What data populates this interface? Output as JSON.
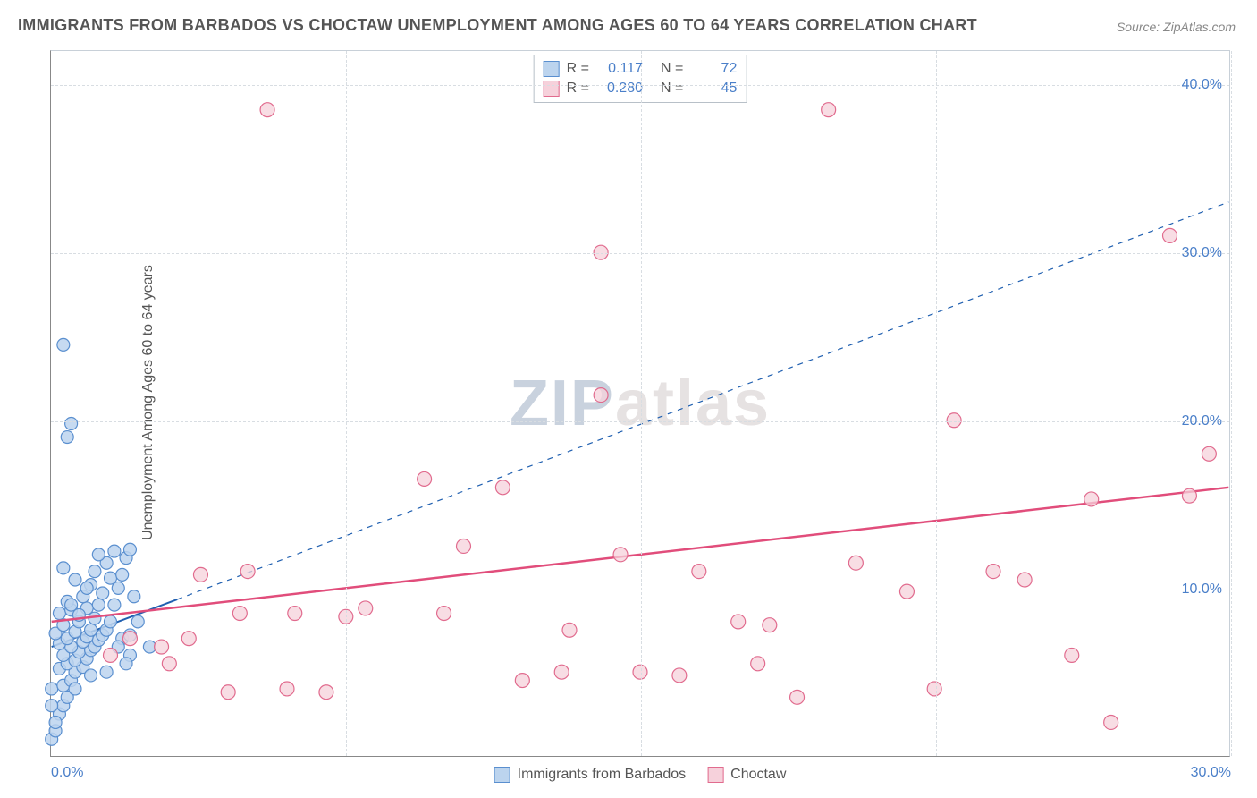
{
  "title": "IMMIGRANTS FROM BARBADOS VS CHOCTAW UNEMPLOYMENT AMONG AGES 60 TO 64 YEARS CORRELATION CHART",
  "source": "Source: ZipAtlas.com",
  "ylabel": "Unemployment Among Ages 60 to 64 years",
  "watermark_zip": "ZIP",
  "watermark_atlas": "atlas",
  "chart": {
    "type": "scatter",
    "xlim": [
      0,
      30
    ],
    "ylim": [
      0,
      42
    ],
    "xtick_positions": [
      0,
      7.5,
      15,
      22.5,
      30
    ],
    "xtick_labels": [
      "0.0%",
      "",
      "",
      "",
      "30.0%"
    ],
    "ytick_positions": [
      10,
      20,
      30,
      40
    ],
    "ytick_labels": [
      "10.0%",
      "20.0%",
      "30.0%",
      "40.0%"
    ],
    "grid_h": [
      10,
      20,
      30,
      40
    ],
    "grid_v": [
      7.5,
      15,
      22.5,
      30
    ],
    "background_color": "#ffffff",
    "grid_color": "#d8dde2",
    "tick_color": "#4a7fc9",
    "axis_color": "#888888"
  },
  "series": [
    {
      "name": "Immigrants from Barbados",
      "fill": "#bcd4ee",
      "stroke": "#5a8fcf",
      "marker_radius": 7,
      "marker_opacity": 0.85,
      "trend": {
        "x1": 0,
        "y1": 6.5,
        "x2": 30,
        "y2": 33.0,
        "drawn_to_x": 3.2,
        "dash_after": true,
        "stroke": "#1f5fb0",
        "width": 2
      },
      "R": "0.117",
      "N": "72",
      "points": [
        [
          0.0,
          1.0
        ],
        [
          0.1,
          1.5
        ],
        [
          0.2,
          2.5
        ],
        [
          0.3,
          3.0
        ],
        [
          0.4,
          3.5
        ],
        [
          0.0,
          4.0
        ],
        [
          0.3,
          4.2
        ],
        [
          0.5,
          4.5
        ],
        [
          0.6,
          5.0
        ],
        [
          0.2,
          5.2
        ],
        [
          0.8,
          5.3
        ],
        [
          0.4,
          5.5
        ],
        [
          0.6,
          5.7
        ],
        [
          0.9,
          5.8
        ],
        [
          0.3,
          6.0
        ],
        [
          0.7,
          6.2
        ],
        [
          1.0,
          6.3
        ],
        [
          0.5,
          6.5
        ],
        [
          1.1,
          6.5
        ],
        [
          0.2,
          6.7
        ],
        [
          0.8,
          6.8
        ],
        [
          1.2,
          6.9
        ],
        [
          0.4,
          7.0
        ],
        [
          0.9,
          7.1
        ],
        [
          1.3,
          7.2
        ],
        [
          0.1,
          7.3
        ],
        [
          0.6,
          7.4
        ],
        [
          1.0,
          7.5
        ],
        [
          1.4,
          7.5
        ],
        [
          0.3,
          7.8
        ],
        [
          0.7,
          8.0
        ],
        [
          1.1,
          8.2
        ],
        [
          1.5,
          8.0
        ],
        [
          0.2,
          8.5
        ],
        [
          0.5,
          8.7
        ],
        [
          0.9,
          8.8
        ],
        [
          1.2,
          9.0
        ],
        [
          1.6,
          9.0
        ],
        [
          0.4,
          9.2
        ],
        [
          0.8,
          9.5
        ],
        [
          1.3,
          9.7
        ],
        [
          1.7,
          10.0
        ],
        [
          1.0,
          10.2
        ],
        [
          0.6,
          10.5
        ],
        [
          1.5,
          10.6
        ],
        [
          1.8,
          10.8
        ],
        [
          1.1,
          11.0
        ],
        [
          0.3,
          11.2
        ],
        [
          1.4,
          11.5
        ],
        [
          1.9,
          11.8
        ],
        [
          1.2,
          12.0
        ],
        [
          2.0,
          12.3
        ],
        [
          1.6,
          12.2
        ],
        [
          0.9,
          10.0
        ],
        [
          0.5,
          9.0
        ],
        [
          0.7,
          8.4
        ],
        [
          1.8,
          7.0
        ],
        [
          2.0,
          7.2
        ],
        [
          2.2,
          8.0
        ],
        [
          2.5,
          6.5
        ],
        [
          0.1,
          2.0
        ],
        [
          0.0,
          3.0
        ],
        [
          0.6,
          4.0
        ],
        [
          1.0,
          4.8
        ],
        [
          0.4,
          19.0
        ],
        [
          0.5,
          19.8
        ],
        [
          0.3,
          24.5
        ],
        [
          2.0,
          6.0
        ],
        [
          1.7,
          6.5
        ],
        [
          1.4,
          5.0
        ],
        [
          1.9,
          5.5
        ],
        [
          2.1,
          9.5
        ]
      ]
    },
    {
      "name": "Choctaw",
      "fill": "#f6d1db",
      "stroke": "#e16b8e",
      "marker_radius": 8,
      "marker_opacity": 0.75,
      "trend": {
        "x1": 0,
        "y1": 8.0,
        "x2": 30,
        "y2": 16.0,
        "drawn_to_x": 30,
        "dash_after": false,
        "stroke": "#e14d7b",
        "width": 2.5
      },
      "R": "0.280",
      "N": "45",
      "points": [
        [
          1.5,
          6.0
        ],
        [
          2.0,
          7.0
        ],
        [
          2.8,
          6.5
        ],
        [
          3.5,
          7.0
        ],
        [
          3.0,
          5.5
        ],
        [
          4.5,
          3.8
        ],
        [
          4.8,
          8.5
        ],
        [
          5.0,
          11.0
        ],
        [
          6.0,
          4.0
        ],
        [
          6.2,
          8.5
        ],
        [
          7.0,
          3.8
        ],
        [
          7.5,
          8.3
        ],
        [
          8.0,
          8.8
        ],
        [
          9.5,
          16.5
        ],
        [
          10.0,
          8.5
        ],
        [
          10.5,
          12.5
        ],
        [
          11.5,
          16.0
        ],
        [
          12.0,
          4.5
        ],
        [
          13.0,
          5.0
        ],
        [
          13.2,
          7.5
        ],
        [
          14.0,
          30.0
        ],
        [
          14.0,
          21.5
        ],
        [
          14.5,
          12.0
        ],
        [
          15.0,
          5.0
        ],
        [
          16.0,
          4.8
        ],
        [
          16.5,
          11.0
        ],
        [
          17.5,
          8.0
        ],
        [
          18.0,
          5.5
        ],
        [
          18.3,
          7.8
        ],
        [
          19.0,
          3.5
        ],
        [
          19.8,
          38.5
        ],
        [
          20.5,
          11.5
        ],
        [
          21.8,
          9.8
        ],
        [
          22.5,
          4.0
        ],
        [
          23.0,
          20.0
        ],
        [
          24.0,
          11.0
        ],
        [
          24.8,
          10.5
        ],
        [
          26.0,
          6.0
        ],
        [
          27.0,
          2.0
        ],
        [
          26.5,
          15.3
        ],
        [
          28.5,
          31.0
        ],
        [
          29.0,
          15.5
        ],
        [
          29.5,
          18.0
        ],
        [
          5.5,
          38.5
        ],
        [
          3.8,
          10.8
        ]
      ]
    }
  ],
  "r_legend_labels": {
    "R": "R =",
    "N": "N ="
  },
  "title_fontsize": 18,
  "label_fontsize": 16
}
